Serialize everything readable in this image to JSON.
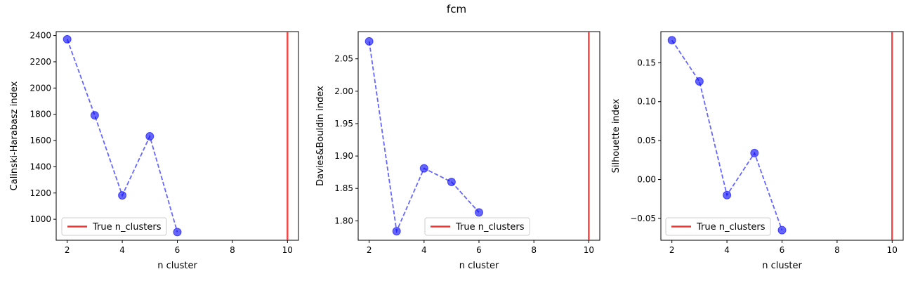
{
  "figure": {
    "title": "fcm"
  },
  "colors": {
    "series": "#0000ff",
    "true_line": "#ee3333",
    "axis": "#000000"
  },
  "chart_data": [
    {
      "type": "line",
      "xlabel": "n cluster",
      "ylabel": "Calinski-Harabasz index",
      "xlim": [
        1.6,
        10.4
      ],
      "ylim": [
        840,
        2430
      ],
      "xticks": [
        2,
        4,
        6,
        8,
        10
      ],
      "yticks": [
        1000,
        1200,
        1400,
        1600,
        1800,
        2000,
        2200,
        2400
      ],
      "ytick_labels": [
        "1000",
        "1200",
        "1400",
        "1600",
        "1800",
        "2000",
        "2200",
        "2400"
      ],
      "x": [
        2,
        3,
        4,
        5,
        6
      ],
      "y": [
        2372,
        1792,
        1182,
        1632,
        902
      ],
      "true_n_clusters": 10,
      "legend": {
        "label": "True n_clusters",
        "placement": "lower left"
      },
      "grid": false
    },
    {
      "type": "line",
      "xlabel": "n cluster",
      "ylabel": "Davies&Bouldin index",
      "xlim": [
        1.6,
        10.4
      ],
      "ylim": [
        1.77,
        2.092
      ],
      "xticks": [
        2,
        4,
        6,
        8,
        10
      ],
      "yticks": [
        1.8,
        1.85,
        1.9,
        1.95,
        2.0,
        2.05
      ],
      "ytick_labels": [
        "1.80",
        "1.85",
        "1.90",
        "1.95",
        "2.00",
        "2.05"
      ],
      "x": [
        2,
        3,
        4,
        5,
        6
      ],
      "y": [
        2.077,
        1.784,
        1.881,
        1.86,
        1.813
      ],
      "true_n_clusters": 10,
      "legend": {
        "label": "True n_clusters",
        "placement": "lower center"
      },
      "grid": false
    },
    {
      "type": "line",
      "xlabel": "n cluster",
      "ylabel": "Silhouette index",
      "xlim": [
        1.6,
        10.4
      ],
      "ylim": [
        -0.078,
        0.19
      ],
      "xticks": [
        2,
        4,
        6,
        8,
        10
      ],
      "yticks": [
        -0.05,
        0.0,
        0.05,
        0.1,
        0.15
      ],
      "ytick_labels": [
        "−0.05",
        "0.00",
        "0.05",
        "0.10",
        "0.15"
      ],
      "x": [
        2,
        3,
        4,
        5,
        6
      ],
      "y": [
        0.179,
        0.126,
        -0.02,
        0.034,
        -0.065
      ],
      "true_n_clusters": 10,
      "legend": {
        "label": "True n_clusters",
        "placement": "lower left"
      },
      "grid": false
    }
  ]
}
